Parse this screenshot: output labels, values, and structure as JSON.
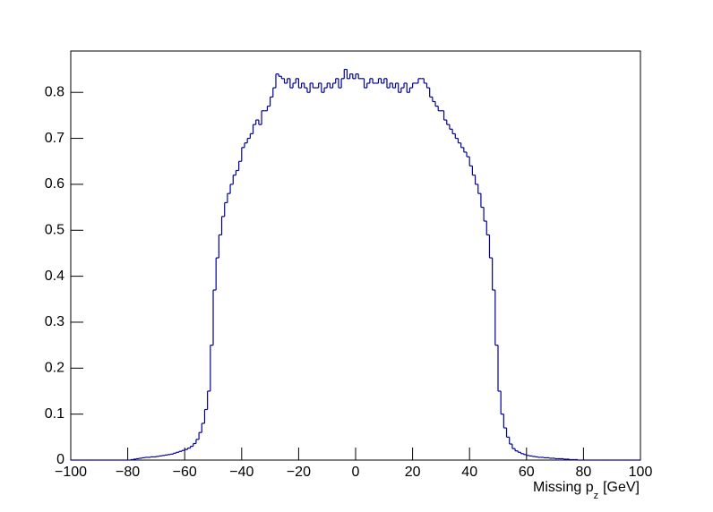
{
  "chart_data": {
    "type": "histogram",
    "x_label": "Missing p",
    "x_label_sub": "z",
    "x_label_unit": "[GeV]",
    "color": "#000099",
    "bins": [
      -100,
      -99,
      -98,
      -97,
      -96,
      -95,
      -94,
      -93,
      -92,
      -91,
      -90,
      -89,
      -88,
      -87,
      -86,
      -85,
      -84,
      -83,
      -82,
      -81,
      -80,
      -79,
      -78,
      -77,
      -76,
      -75,
      -74,
      -73,
      -72,
      -71,
      -70,
      -69,
      -68,
      -67,
      -66,
      -65,
      -64,
      -63,
      -62,
      -61,
      -60,
      -59,
      -58,
      -57,
      -56,
      -55,
      -54,
      -53,
      -52,
      -51,
      -50,
      -49,
      -48,
      -47,
      -46,
      -45,
      -44,
      -43,
      -42,
      -41,
      -40,
      -39,
      -38,
      -37,
      -36,
      -35,
      -34,
      -33,
      -32,
      -31,
      -30,
      -29,
      -28,
      -27,
      -26,
      -25,
      -24,
      -23,
      -22,
      -21,
      -20,
      -19,
      -18,
      -17,
      -16,
      -15,
      -14,
      -13,
      -12,
      -11,
      -10,
      -9,
      -8,
      -7,
      -6,
      -5,
      -4,
      -3,
      -2,
      -1,
      0,
      1,
      2,
      3,
      4,
      5,
      6,
      7,
      8,
      9,
      10,
      11,
      12,
      13,
      14,
      15,
      16,
      17,
      18,
      19,
      20,
      21,
      22,
      23,
      24,
      25,
      26,
      27,
      28,
      29,
      30,
      31,
      32,
      33,
      34,
      35,
      36,
      37,
      38,
      39,
      40,
      41,
      42,
      43,
      44,
      45,
      46,
      47,
      48,
      49,
      50,
      51,
      52,
      53,
      54,
      55,
      56,
      57,
      58,
      59,
      60,
      61,
      62,
      63,
      64,
      65,
      66,
      67,
      68,
      69,
      70,
      71,
      72,
      73,
      74,
      75,
      76,
      77,
      78,
      79,
      80,
      81,
      82,
      83,
      84,
      85,
      86,
      87,
      88,
      89,
      90,
      91,
      92,
      93,
      94,
      95,
      96,
      97,
      98,
      99,
      100
    ],
    "counts": [
      0,
      0,
      0,
      0,
      0,
      0,
      0,
      0,
      0,
      0,
      0,
      0,
      0,
      0,
      0,
      0,
      0,
      0,
      0,
      0,
      0,
      0.001,
      0.002,
      0.003,
      0.004,
      0.005,
      0.006,
      0.006,
      0.007,
      0.007,
      0.008,
      0.009,
      0.01,
      0.011,
      0.012,
      0.013,
      0.015,
      0.017,
      0.019,
      0.021,
      0.023,
      0.026,
      0.03,
      0.036,
      0.045,
      0.06,
      0.08,
      0.11,
      0.15,
      0.25,
      0.37,
      0.44,
      0.49,
      0.53,
      0.56,
      0.58,
      0.6,
      0.62,
      0.63,
      0.65,
      0.68,
      0.69,
      0.7,
      0.71,
      0.73,
      0.74,
      0.73,
      0.76,
      0.76,
      0.77,
      0.79,
      0.81,
      0.84,
      0.835,
      0.83,
      0.82,
      0.83,
      0.81,
      0.82,
      0.83,
      0.81,
      0.82,
      0.81,
      0.8,
      0.82,
      0.81,
      0.81,
      0.82,
      0.8,
      0.81,
      0.82,
      0.81,
      0.82,
      0.83,
      0.81,
      0.83,
      0.85,
      0.83,
      0.84,
      0.83,
      0.84,
      0.83,
      0.83,
      0.81,
      0.82,
      0.83,
      0.82,
      0.82,
      0.83,
      0.82,
      0.83,
      0.81,
      0.82,
      0.81,
      0.82,
      0.8,
      0.81,
      0.82,
      0.8,
      0.81,
      0.82,
      0.82,
      0.83,
      0.83,
      0.82,
      0.81,
      0.79,
      0.78,
      0.77,
      0.76,
      0.76,
      0.74,
      0.73,
      0.72,
      0.71,
      0.7,
      0.69,
      0.68,
      0.67,
      0.66,
      0.64,
      0.62,
      0.6,
      0.58,
      0.55,
      0.52,
      0.49,
      0.44,
      0.37,
      0.25,
      0.15,
      0.1,
      0.07,
      0.05,
      0.035,
      0.025,
      0.02,
      0.017,
      0.014,
      0.012,
      0.01,
      0.009,
      0.008,
      0.007,
      0.006,
      0.006,
      0.005,
      0.005,
      0.004,
      0.004,
      0.003,
      0.003,
      0.003,
      0.002,
      0.002,
      0.001,
      0.001,
      0.001,
      0,
      0,
      0,
      0,
      0,
      0,
      0,
      0,
      0,
      0,
      0,
      0,
      0,
      0,
      0,
      0,
      0,
      0,
      0,
      0,
      0,
      0
    ],
    "xlim": [
      -100,
      100
    ],
    "ylim": [
      0,
      0.89
    ],
    "xticks": [
      {
        "value": -100,
        "label": "−100"
      },
      {
        "value": -80,
        "label": "−80"
      },
      {
        "value": -60,
        "label": "−60"
      },
      {
        "value": -40,
        "label": "−40"
      },
      {
        "value": -20,
        "label": "−20"
      },
      0,
      20,
      40,
      60,
      80,
      100
    ],
    "yticks": [
      0,
      0.1,
      0.2,
      0.3,
      0.4,
      0.5,
      0.6,
      0.7,
      0.8
    ]
  }
}
